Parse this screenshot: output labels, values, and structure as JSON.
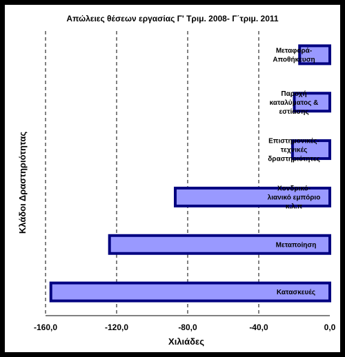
{
  "chart_data": {
    "type": "bar",
    "orientation": "horizontal",
    "title": "Απώλειες θέσεων εργασίας Γ' Τριμ. 2008- Γ΄τριμ. 2011",
    "xlabel": "Χιλιάδες",
    "ylabel": "Κλάδοι Δραστηριότητας",
    "xlim": [
      -160,
      0
    ],
    "x_ticks": [
      "-160,0",
      "-120,0",
      "-80,0",
      "-40,0",
      "0,0"
    ],
    "grid": "vertical dashed",
    "categories": [
      "Μεταφορά-Αποθήκευση",
      "Παροχή καταλύματος & εστίασης",
      "Επιστημονικές-τεχνικές δραστηριότητες",
      "Χονδρικό-λιανικό εμπόριο κ.λ.π",
      "Μεταποίηση",
      "Κατασκευές"
    ],
    "values": [
      -17.0,
      -20.0,
      -21.0,
      -87.0,
      -124.0,
      -157.0
    ],
    "bar_color": "#9999ff",
    "bar_edge_color": "#000080"
  }
}
